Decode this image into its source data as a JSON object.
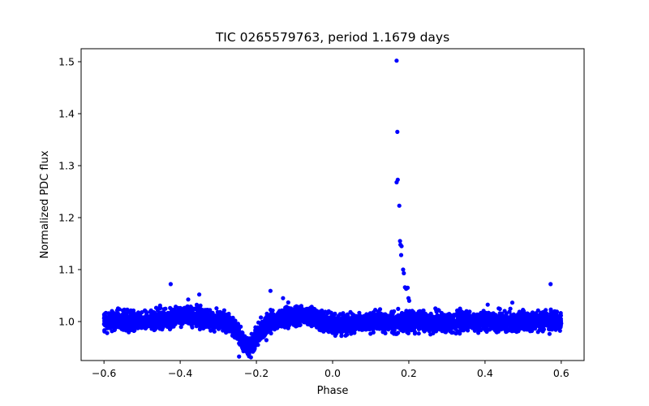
{
  "chart_data": {
    "type": "scatter",
    "title": "TIC 0265579763, period 1.1679 days",
    "xlabel": "Phase",
    "ylabel": "Normalized PDC flux",
    "xlim": [
      -0.66,
      0.66
    ],
    "ylim": [
      0.925,
      1.525
    ],
    "x_ticks": [
      -0.6,
      -0.4,
      -0.2,
      0.0,
      0.2,
      0.4,
      0.6
    ],
    "x_tick_labels": [
      "−0.6",
      "−0.4",
      "−0.2",
      "0.0",
      "0.2",
      "0.4",
      "0.6"
    ],
    "y_ticks": [
      1.0,
      1.1,
      1.2,
      1.3,
      1.4,
      1.5
    ],
    "y_tick_labels": [
      "1.0",
      "1.1",
      "1.2",
      "1.3",
      "1.4",
      "1.5"
    ],
    "grid": false,
    "marker_color": "#0000ff",
    "phase_range": [
      -0.6,
      0.6
    ],
    "baseline_flux": 1.0,
    "dip_center": -0.22,
    "dip_min_flux": 0.935,
    "flare_points": [
      {
        "x": 0.168,
        "y": 1.502
      },
      {
        "x": 0.17,
        "y": 1.365
      },
      {
        "x": 0.168,
        "y": 1.268
      },
      {
        "x": 0.171,
        "y": 1.273
      },
      {
        "x": 0.175,
        "y": 1.223
      },
      {
        "x": 0.177,
        "y": 1.155
      },
      {
        "x": 0.178,
        "y": 1.148
      },
      {
        "x": 0.181,
        "y": 1.145
      },
      {
        "x": 0.18,
        "y": 1.128
      },
      {
        "x": 0.185,
        "y": 1.1
      },
      {
        "x": 0.187,
        "y": 1.093
      },
      {
        "x": 0.19,
        "y": 1.066
      },
      {
        "x": 0.193,
        "y": 1.063
      },
      {
        "x": 0.197,
        "y": 1.065
      },
      {
        "x": 0.199,
        "y": 1.045
      },
      {
        "x": 0.201,
        "y": 1.04
      }
    ],
    "outlier_points": [
      {
        "x": -0.425,
        "y": 1.072
      },
      {
        "x": -0.163,
        "y": 1.059
      },
      {
        "x": 0.572,
        "y": 1.072
      },
      {
        "x": -0.35,
        "y": 1.052
      },
      {
        "x": -0.13,
        "y": 1.045
      }
    ]
  }
}
